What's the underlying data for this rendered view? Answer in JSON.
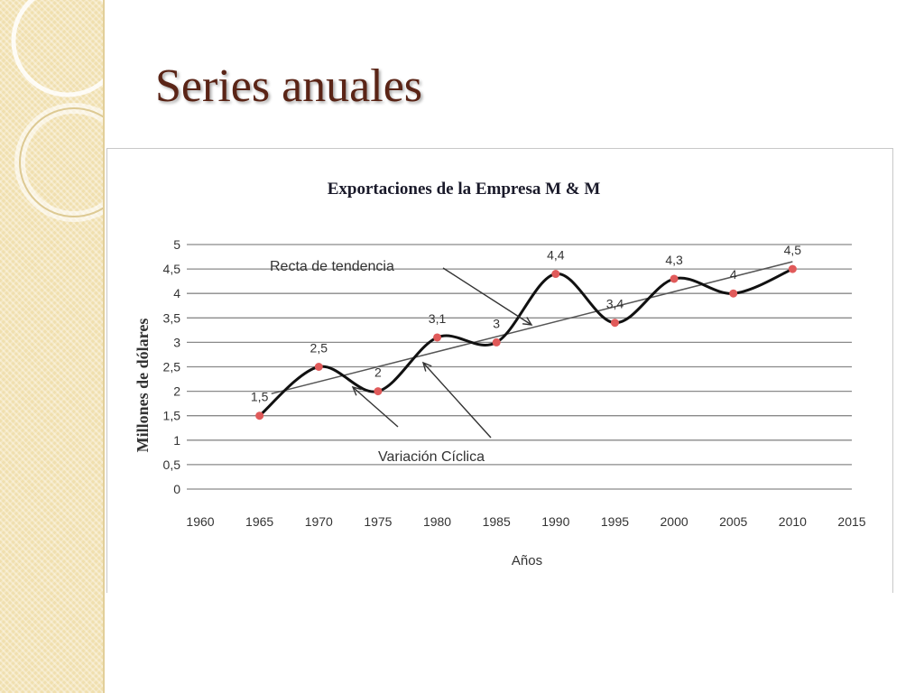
{
  "slide": {
    "title": "Series anuales"
  },
  "colors": {
    "sidebar": "#f0dfae",
    "title": "#5a2416",
    "series_line": "#111111",
    "marker": "#e05a5a",
    "trend_line": "#555555",
    "grid": "#8a8a8a"
  },
  "chart_data": {
    "type": "line",
    "title": "Exportaciones de la Empresa M & M",
    "xlabel": "Años",
    "ylabel": "Millones de dólares",
    "xlim": [
      1960,
      2015
    ],
    "ylim": [
      0,
      5
    ],
    "x_ticks": [
      1960,
      1965,
      1970,
      1975,
      1980,
      1985,
      1990,
      1995,
      2000,
      2005,
      2010,
      2015
    ],
    "y_ticks": [
      "0",
      "0,5",
      "1",
      "1,5",
      "2",
      "2,5",
      "3",
      "3,5",
      "4",
      "4,5",
      "5"
    ],
    "grid": "horizontal",
    "series": [
      {
        "x": [
          1965,
          1970,
          1975,
          1980,
          1985,
          1990,
          1995,
          2000,
          2005,
          2010
        ],
        "y": [
          1.5,
          2.5,
          2,
          3.1,
          3,
          4.4,
          3.4,
          4.3,
          4,
          4.5
        ],
        "labels": [
          "1,5",
          "2,5",
          "2",
          "3,1",
          "3",
          "4,4",
          "3,4",
          "4,3",
          "4",
          "4,5"
        ],
        "smooth": true
      }
    ],
    "trend_line": {
      "x": [
        1966,
        2010
      ],
      "y": [
        1.95,
        4.65
      ]
    },
    "annotations": [
      {
        "text": "Recta de tendencia"
      },
      {
        "text": "Variación Cíclica"
      }
    ]
  }
}
